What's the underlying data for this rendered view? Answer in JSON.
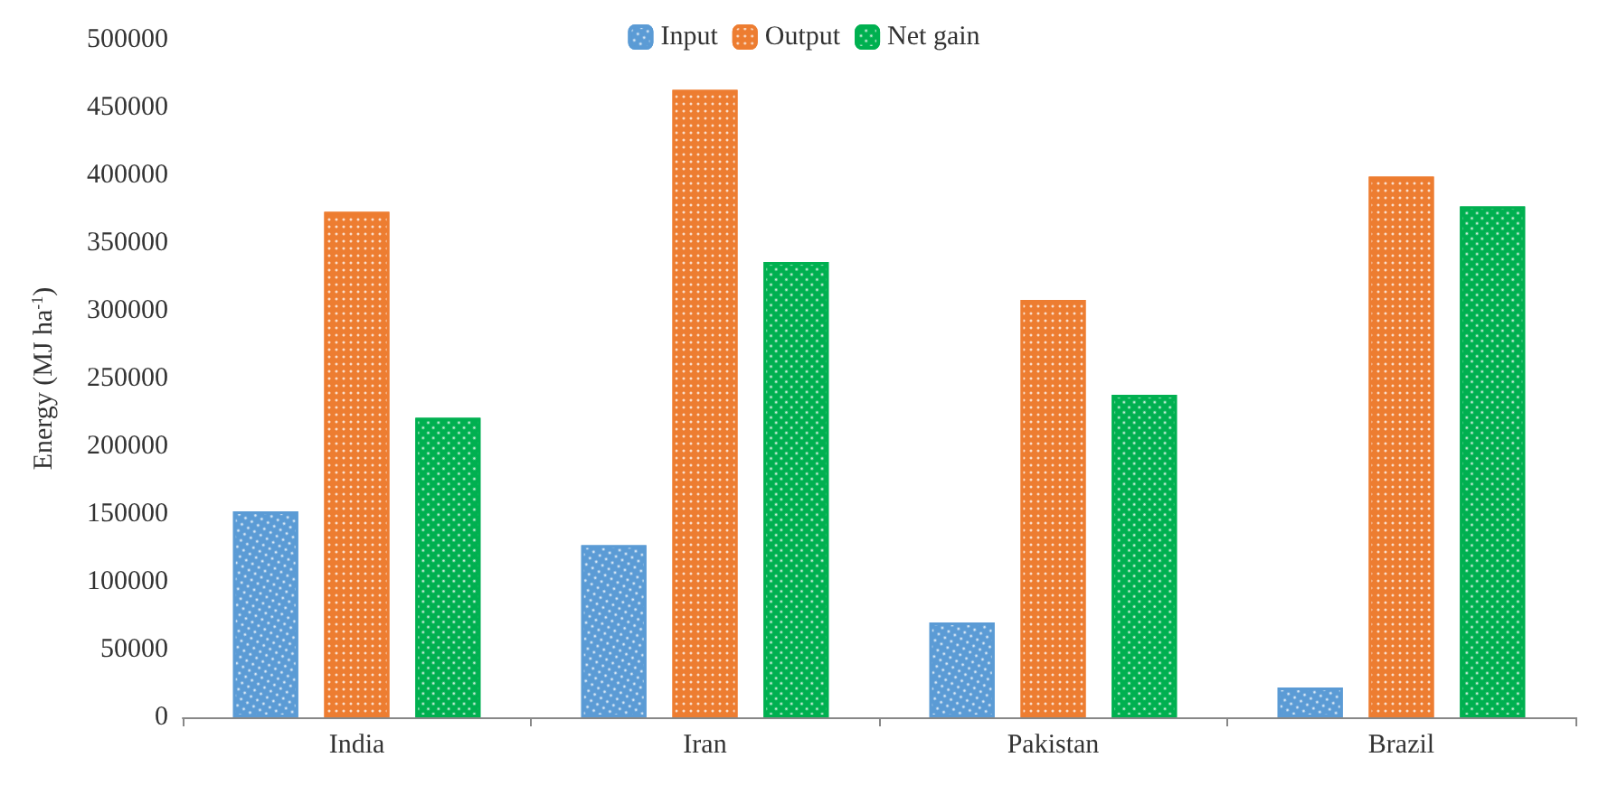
{
  "chart_data": {
    "type": "bar",
    "ylabel": "Energy (MJ ha$^{-1}$)",
    "categories": [
      "India",
      "Iran",
      "Pakistan",
      "Brazil"
    ],
    "series": [
      {
        "name": "Input",
        "color": "#5b9bd5",
        "values": [
          152000,
          127000,
          70000,
          22000
        ]
      },
      {
        "name": "Output",
        "color": "#ed7d31",
        "values": [
          373000,
          463000,
          308000,
          399000
        ]
      },
      {
        "name": "Net gain",
        "color": "#00b050",
        "values": [
          221000,
          336000,
          238000,
          377000
        ]
      }
    ],
    "ylim": [
      0,
      500000
    ],
    "yticks": [
      0,
      50000,
      100000,
      150000,
      200000,
      250000,
      300000,
      350000,
      400000,
      450000,
      500000
    ],
    "grid": false,
    "legend": "top"
  }
}
